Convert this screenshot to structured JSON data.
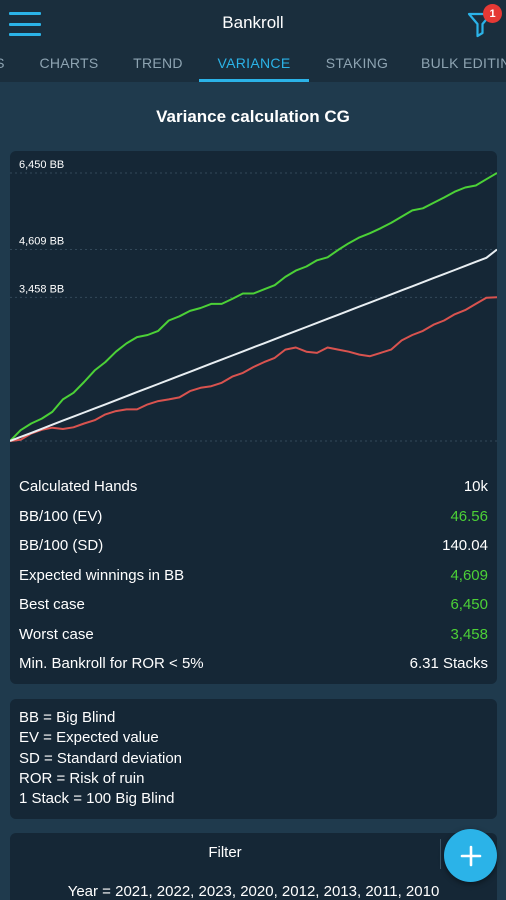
{
  "header": {
    "title": "Bankroll",
    "filter_badge": "1"
  },
  "tabs": [
    {
      "label": "S"
    },
    {
      "label": "CHARTS"
    },
    {
      "label": "TREND"
    },
    {
      "label": "VARIANCE"
    },
    {
      "label": "STAKING"
    },
    {
      "label": "BULK EDITING"
    }
  ],
  "active_tab": "VARIANCE",
  "section_title": "Variance calculation CG",
  "chart_data": {
    "type": "line",
    "y_tick_labels": [
      "6,450 BB",
      "4,609 BB",
      "3,458 BB"
    ],
    "y_ticks": [
      6450,
      4609,
      3458
    ],
    "ylim": [
      0,
      6450
    ],
    "x_range": [
      0,
      10000
    ],
    "grid": "dashed horizontal at tick values",
    "series": [
      {
        "color": "#4cd137",
        "values": [
          0,
          260,
          420,
          540,
          700,
          1000,
          1160,
          1420,
          1700,
          1900,
          2150,
          2350,
          2500,
          2550,
          2650,
          2900,
          3000,
          3130,
          3200,
          3300,
          3300,
          3420,
          3550,
          3550,
          3650,
          3750,
          3950,
          4100,
          4200,
          4350,
          4420,
          4600,
          4760,
          4900,
          5000,
          5120,
          5250,
          5400,
          5550,
          5600,
          5730,
          5860,
          6000,
          6100,
          6150,
          6300,
          6450
        ]
      },
      {
        "color": "#e8eef2",
        "values": [
          0,
          98,
          196,
          294,
          392,
          490,
          588,
          686,
          784,
          882,
          980,
          1078,
          1176,
          1274,
          1372,
          1470,
          1568,
          1666,
          1764,
          1862,
          1960,
          2058,
          2156,
          2254,
          2352,
          2450,
          2548,
          2646,
          2744,
          2842,
          2940,
          3038,
          3136,
          3234,
          3332,
          3430,
          3528,
          3626,
          3724,
          3822,
          3920,
          4018,
          4116,
          4214,
          4312,
          4410,
          4609
        ]
      },
      {
        "color": "#d9534f",
        "values": [
          0,
          30,
          180,
          270,
          320,
          290,
          330,
          420,
          500,
          640,
          720,
          760,
          760,
          880,
          960,
          1000,
          1050,
          1200,
          1280,
          1320,
          1400,
          1550,
          1640,
          1780,
          1900,
          2000,
          2200,
          2250,
          2150,
          2120,
          2250,
          2200,
          2150,
          2080,
          2040,
          2120,
          2200,
          2420,
          2550,
          2650,
          2800,
          2900,
          3050,
          3150,
          3300,
          3450,
          3458
        ]
      }
    ]
  },
  "stats": [
    {
      "label": "Calculated Hands",
      "value": "10k",
      "color": "#ffffff"
    },
    {
      "label": "BB/100 (EV)",
      "value": "46.56",
      "color": "#4cd137"
    },
    {
      "label": "BB/100 (SD)",
      "value": "140.04",
      "color": "#ffffff"
    },
    {
      "label": "Expected winnings in BB",
      "value": "4,609",
      "color": "#4cd137"
    },
    {
      "label": "Best case",
      "value": "6,450",
      "color": "#4cd137"
    },
    {
      "label": "Worst case",
      "value": "3,458",
      "color": "#4cd137"
    },
    {
      "label": "Min. Bankroll for ROR < 5%",
      "value": "6.31 Stacks",
      "color": "#ffffff"
    }
  ],
  "legend": [
    "BB = Big Blind",
    "EV = Expected value",
    "SD = Standard deviation",
    "ROR = Risk of ruin",
    "1 Stack = 100 Big Blind"
  ],
  "filter": {
    "title": "Filter",
    "value": "Year = 2021, 2022, 2023, 2020, 2012, 2013, 2011, 2010"
  },
  "icons": {
    "menu": "hamburger-menu-icon",
    "filter": "funnel-icon",
    "add": "plus-icon"
  },
  "colors": {
    "accent": "#2bb3e8",
    "positive": "#4cd137",
    "negative": "#d9534f",
    "badge": "#e53935"
  }
}
